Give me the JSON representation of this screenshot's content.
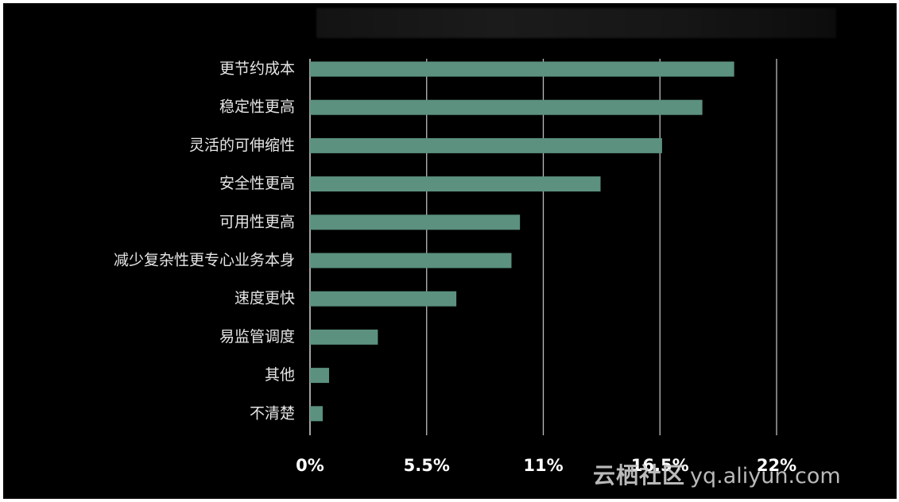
{
  "chart_data": {
    "type": "bar",
    "orientation": "horizontal",
    "title": "",
    "xlabel": "",
    "ylabel": "",
    "categories": [
      "更节约成本",
      "稳定性更高",
      "灵活的可伸缩性",
      "安全性更高",
      "可用性更高",
      "减少复杂性更专心业务本身",
      "速度更快",
      "易监管调度",
      "其他",
      "不清楚"
    ],
    "values": [
      20,
      18.5,
      16.6,
      13.7,
      9.9,
      9.5,
      6.9,
      3.2,
      0.9,
      0.6
    ],
    "xlim": [
      0,
      22
    ],
    "xticks": [
      0,
      5.5,
      11,
      16.5,
      22
    ],
    "xtick_labels": [
      "0%",
      "5.5%",
      "11%",
      "16.5%",
      "22%"
    ],
    "grid": true,
    "colors": {
      "bar": "#5b917e",
      "background": "#000000"
    }
  },
  "watermark": {
    "brand": "云栖社区",
    "url": "yq.aliyun.com"
  }
}
